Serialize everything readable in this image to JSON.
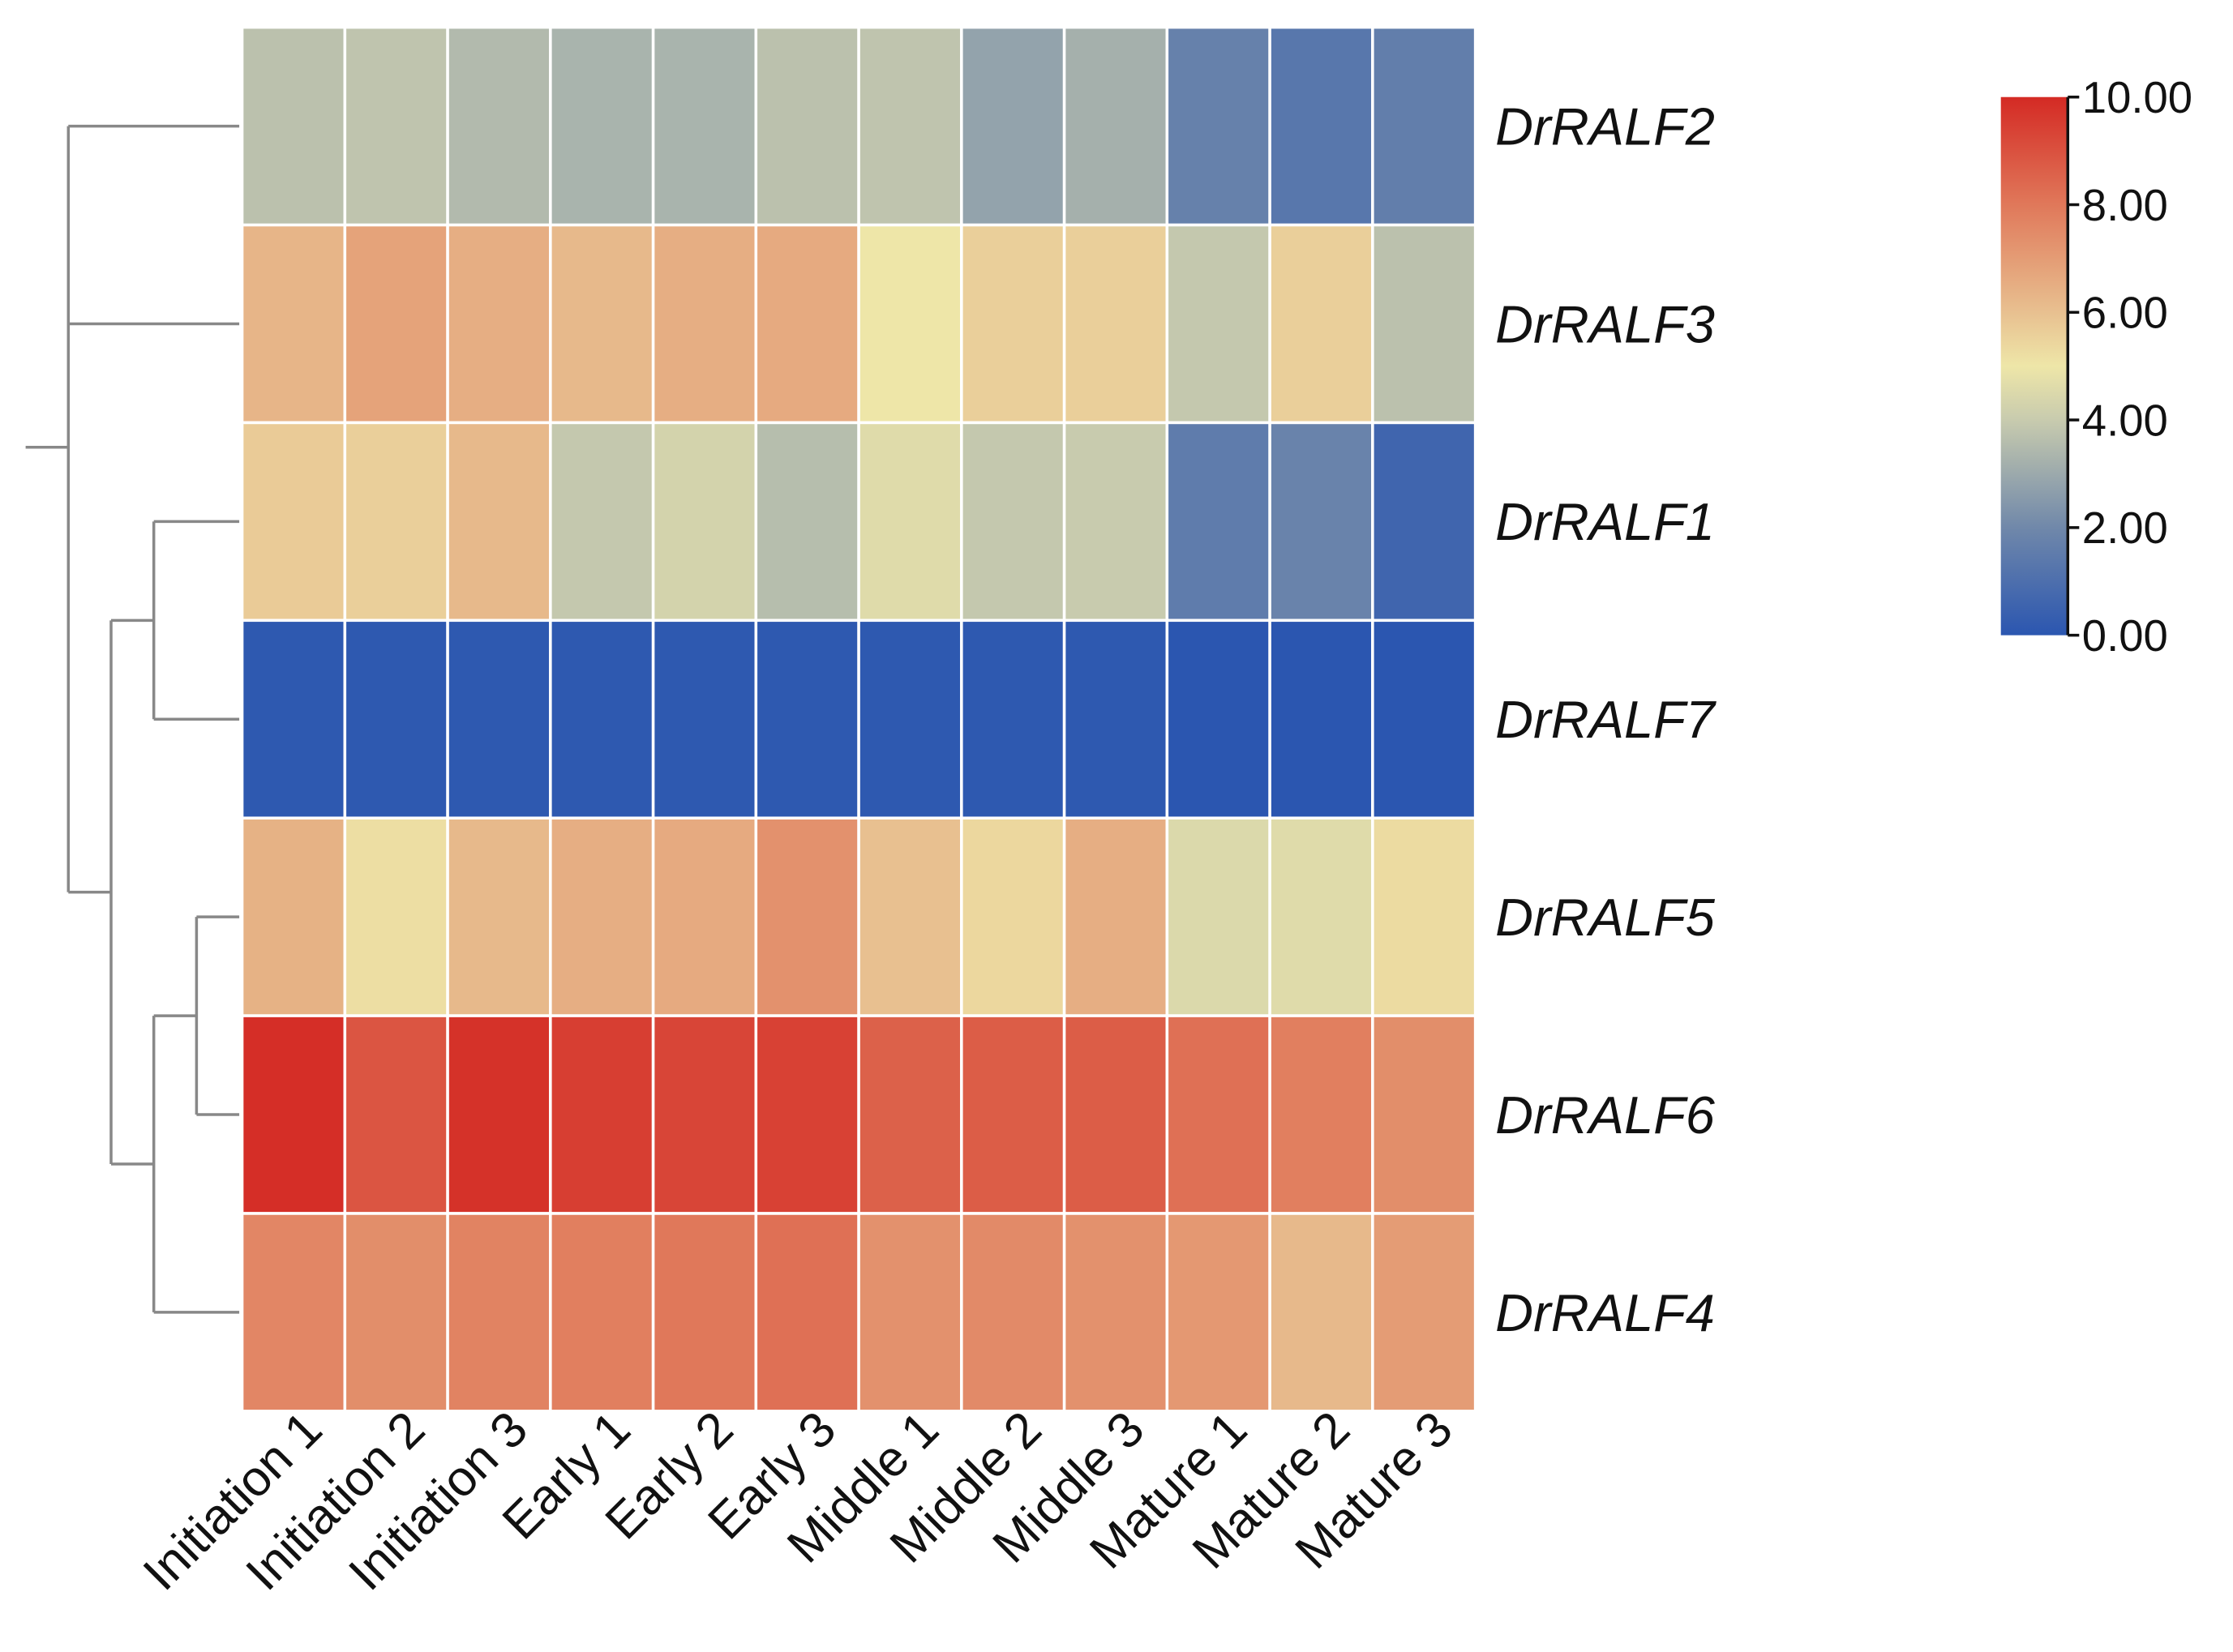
{
  "chart_data": {
    "type": "heatmap",
    "title": "",
    "xlabel": "",
    "ylabel": "",
    "columns": [
      "Initiation 1",
      "Initiation 2",
      "Initiation 3",
      "Early 1",
      "Early 2",
      "Early 3",
      "Middle 1",
      "Middle 2",
      "Middle 3",
      "Mature 1",
      "Mature 2",
      "Mature 3"
    ],
    "rows": [
      "DrRALF2",
      "DrRALF3",
      "DrRALF1",
      "DrRALF7",
      "DrRALF5",
      "DrRALF6",
      "DrRALF4"
    ],
    "values": [
      [
        3.7,
        3.8,
        3.5,
        3.3,
        3.3,
        3.7,
        3.8,
        2.8,
        3.2,
        1.7,
        1.3,
        1.6
      ],
      [
        6.3,
        6.8,
        6.5,
        6.2,
        6.5,
        6.6,
        5.0,
        5.6,
        5.6,
        3.9,
        5.6,
        3.7
      ],
      [
        5.7,
        5.6,
        6.2,
        3.9,
        4.3,
        3.6,
        4.6,
        3.9,
        4.0,
        1.5,
        1.8,
        0.6
      ],
      [
        0.1,
        0.1,
        0.1,
        0.1,
        0.1,
        0.1,
        0.1,
        0.1,
        0.1,
        0.0,
        0.0,
        0.0
      ],
      [
        6.4,
        5.2,
        6.2,
        6.5,
        6.6,
        7.3,
        6.0,
        5.4,
        6.5,
        4.5,
        4.6,
        5.3
      ],
      [
        9.9,
        8.9,
        9.8,
        9.5,
        9.3,
        9.4,
        8.6,
        8.7,
        8.7,
        8.2,
        7.8,
        7.4
      ],
      [
        7.6,
        7.4,
        7.7,
        7.8,
        8.0,
        8.2,
        7.3,
        7.5,
        7.3,
        7.1,
        6.2,
        7.0
      ]
    ],
    "colorbar": {
      "range": [
        0,
        10
      ],
      "ticks": [
        "0.00",
        "2.00",
        "4.00",
        "6.00",
        "8.00",
        "10.00"
      ],
      "colors": [
        "#2b56b0",
        "#7088aa",
        "#c8cbae",
        "#eee6a8",
        "#e8c090",
        "#e0785a",
        "#d42a24"
      ]
    },
    "dendrogram": "rows",
    "grid": false
  }
}
